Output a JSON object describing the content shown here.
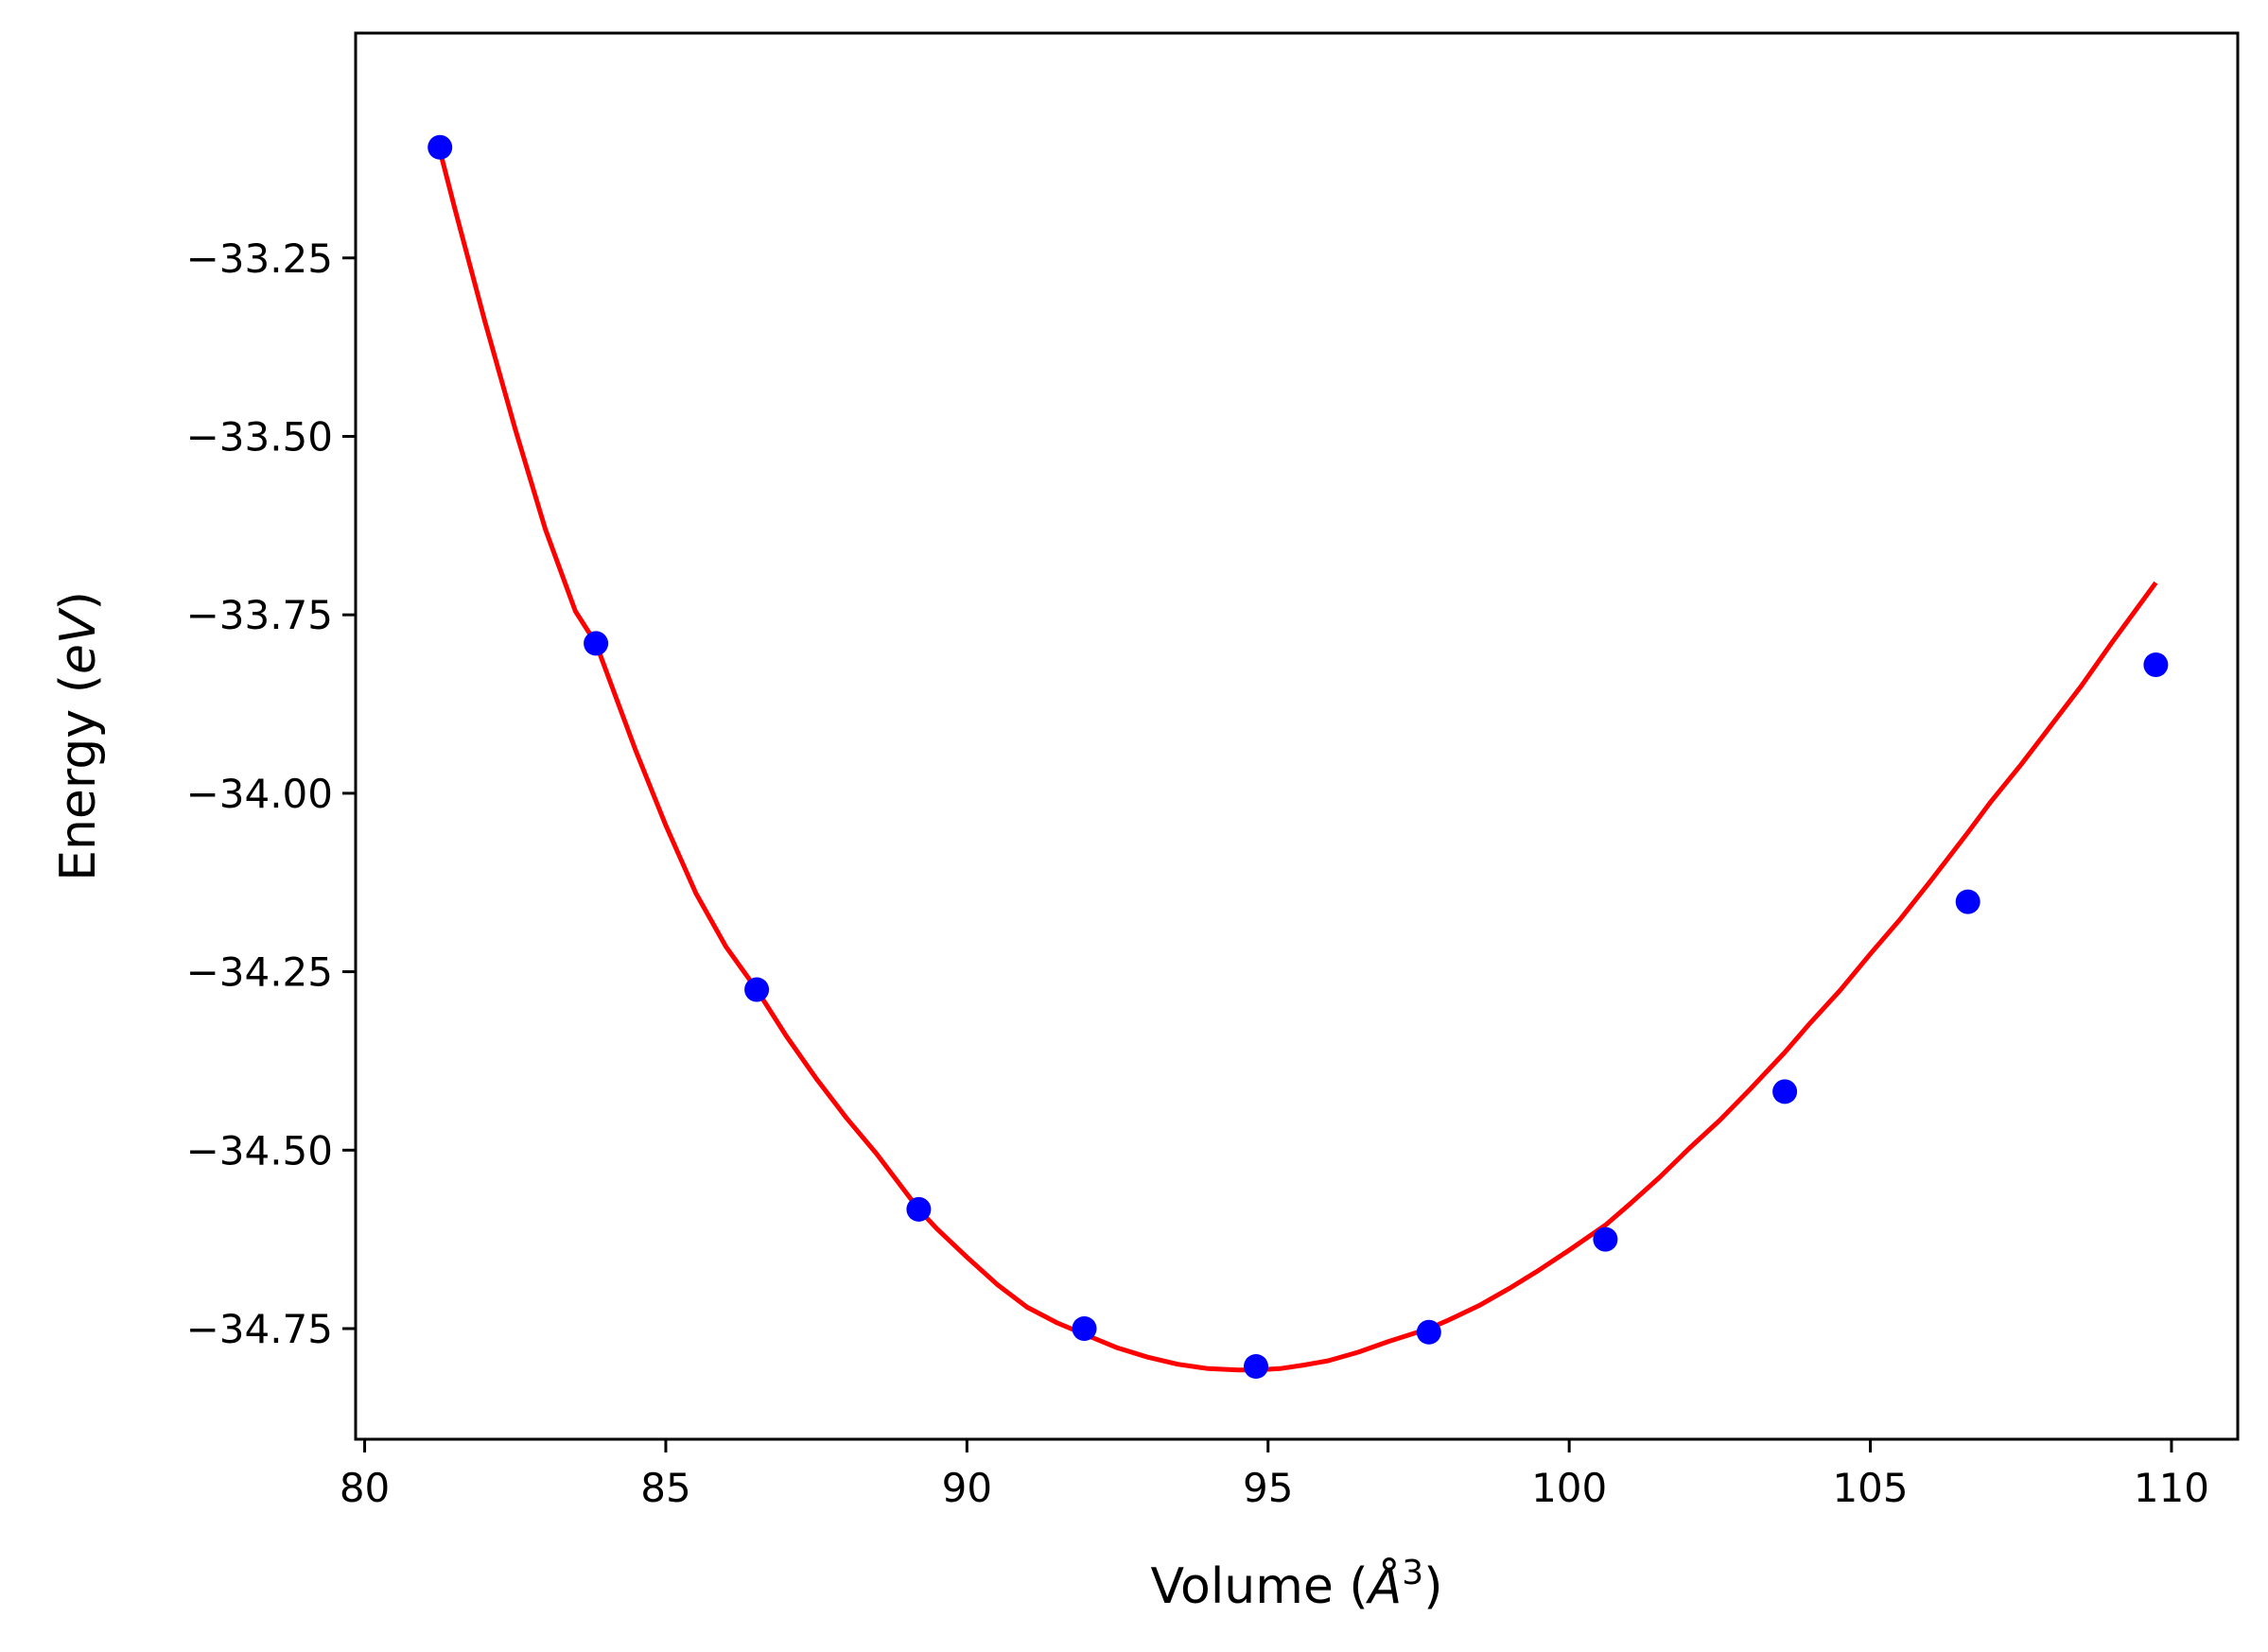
{
  "chart_data": {
    "type": "scatter",
    "title": "",
    "xlabel_parts": [
      "Volume (",
      "Å",
      "3",
      ")"
    ],
    "ylabel_parts": [
      "Energy (",
      "eV",
      ")"
    ],
    "xlim": [
      79.85,
      111.1
    ],
    "ylim": [
      -34.905,
      -32.935
    ],
    "xticks": [
      80,
      85,
      90,
      95,
      100,
      105,
      110
    ],
    "xtick_labels": [
      "80",
      "85",
      "90",
      "95",
      "100",
      "105",
      "110"
    ],
    "yticks": [
      -33.25,
      -33.5,
      -33.75,
      -34.0,
      -34.25,
      -34.5,
      -34.75
    ],
    "ytick_labels": [
      "−33.25",
      "−33.50",
      "−33.75",
      "−34.00",
      "−34.25",
      "−34.50",
      "−34.75"
    ],
    "grid": false,
    "series": [
      {
        "kind": "points",
        "color": "#0000ff",
        "x": [
          81.25,
          83.84,
          86.51,
          89.2,
          91.95,
          94.8,
          97.67,
          100.6,
          103.58,
          106.62,
          109.74
        ],
        "y": [
          -33.095,
          -33.79,
          -34.275,
          -34.583,
          -34.75,
          -34.803,
          -34.755,
          -34.625,
          -34.418,
          -34.152,
          -33.82
        ]
      },
      {
        "kind": "fit-line",
        "color": "#ff0000",
        "x": [
          81.25,
          81.5,
          82.0,
          82.5,
          83.0,
          83.5,
          83.84,
          84.5,
          85.0,
          85.5,
          86.0,
          86.51,
          87.0,
          87.5,
          88.0,
          88.5,
          89.2,
          89.5,
          90.0,
          90.5,
          91.0,
          91.5,
          91.95,
          92.5,
          93.0,
          93.5,
          94.0,
          94.5,
          94.8,
          95.2,
          95.6,
          96.0,
          96.5,
          97.0,
          97.67,
          98.0,
          98.5,
          99.0,
          99.5,
          100.0,
          100.6,
          101.0,
          101.5,
          102.0,
          102.5,
          103.0,
          103.58,
          104.0,
          104.5,
          105.0,
          105.5,
          106.0,
          106.62,
          107.0,
          107.5,
          108.0,
          108.5,
          109.0,
          109.74
        ],
        "y": [
          -33.1,
          -33.182,
          -33.34,
          -33.49,
          -33.63,
          -33.745,
          -33.79,
          -33.94,
          -34.045,
          -34.14,
          -34.215,
          -34.275,
          -34.34,
          -34.4,
          -34.455,
          -34.505,
          -34.583,
          -34.61,
          -34.65,
          -34.688,
          -34.72,
          -34.742,
          -34.758,
          -34.777,
          -34.79,
          -34.8,
          -34.806,
          -34.808,
          -34.808,
          -34.806,
          -34.801,
          -34.795,
          -34.783,
          -34.768,
          -34.75,
          -34.738,
          -34.718,
          -34.694,
          -34.668,
          -34.64,
          -34.605,
          -34.576,
          -34.538,
          -34.497,
          -34.458,
          -34.415,
          -34.363,
          -34.322,
          -34.276,
          -34.225,
          -34.176,
          -34.123,
          -34.055,
          -34.012,
          -33.96,
          -33.905,
          -33.85,
          -33.79,
          -33.705
        ]
      }
    ]
  }
}
